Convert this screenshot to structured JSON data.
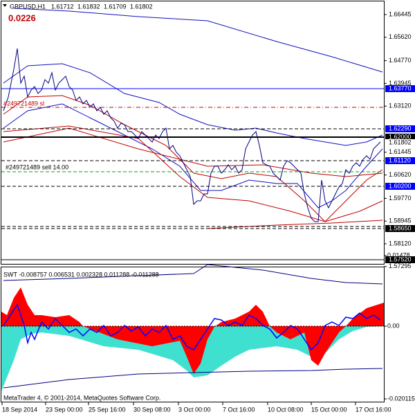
{
  "header": {
    "symbol": "GBPUSD,H1",
    "prices": [
      "1.61712",
      "1.61832",
      "1.61709",
      "1.61802"
    ],
    "spread": "0.0226"
  },
  "price_axis": [
    {
      "label": "1.66445",
      "y": 1.66445
    },
    {
      "label": "1.65620",
      "y": 1.6562
    },
    {
      "label": "1.64770",
      "y": 1.6477
    },
    {
      "label": "1.63945",
      "y": 1.63945
    },
    {
      "label": "1.63120",
      "y": 1.6312
    },
    {
      "label": "1.61445",
      "y": 1.61445
    },
    {
      "label": "1.60620",
      "y": 1.6062
    },
    {
      "label": "1.59770",
      "y": 1.5977
    },
    {
      "label": "1.58945",
      "y": 1.58945
    },
    {
      "label": "1.58120",
      "y": 1.5812
    },
    {
      "label": "1.57295",
      "y": 1.57295
    }
  ],
  "price_levels": [
    {
      "label": "1.63770",
      "kind": "blue"
    },
    {
      "label": "1.62290",
      "kind": "blue"
    },
    {
      "label": "1.62000",
      "kind": "black"
    },
    {
      "label": "1.61802",
      "kind": "black"
    },
    {
      "label": "1.61120",
      "kind": "blue"
    },
    {
      "label": "1.60200",
      "kind": "blue"
    },
    {
      "label": "1.58650",
      "kind": "black"
    },
    {
      "label": "1.57520",
      "kind": "black"
    }
  ],
  "orders": {
    "stop_loss": "#249721489 sl",
    "sell": "#249721489 sell 14.00"
  },
  "indicator": {
    "label": "SWT -0.008757 0.006531 0.002328 0.011288 -0.011288",
    "axis": [
      "0.01478",
      "0.00",
      "-0.020115"
    ]
  },
  "time_axis": [
    "18 Sep 2014",
    "23 Sep 00:00",
    "25 Sep 16:00",
    "30 Sep 08:00",
    "3 Oct 00:00",
    "7 Oct 16:00",
    "10 Oct 08:00",
    "15 Oct 00:00",
    "17 Oct 16:00"
  ],
  "footer": "MetaTrader 4, © 2001-2014, MetaQuotes Software Corp."
}
